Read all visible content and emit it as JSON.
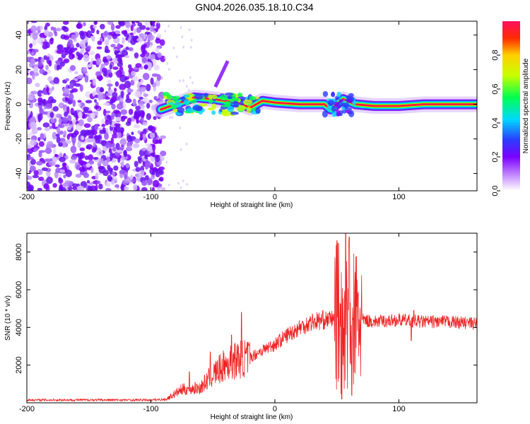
{
  "title": "GN04.2026.035.18.10.C34",
  "chart_data": [
    {
      "type": "heatmap",
      "xlabel": "Height of straight line (km)",
      "ylabel": "Frequency (Hz)",
      "xlim": [
        -200,
        163
      ],
      "ylim": [
        -50,
        48
      ],
      "xticks": [
        -200,
        -100,
        0,
        100
      ],
      "yticks": [
        -40,
        -20,
        0,
        20,
        40
      ],
      "colorbar": {
        "label": "Normalized spectral amplitude",
        "range": [
          0,
          1
        ],
        "ticks": [
          "0.0",
          "0.2",
          "0.4",
          "0.6",
          "0.8"
        ],
        "colormap": [
          "#ffffff",
          "#cc99ff",
          "#7a00ff",
          "#2a3cff",
          "#00d8ff",
          "#00ff50",
          "#c8ff00",
          "#ffd000",
          "#ff2a00",
          "#ff1060"
        ]
      },
      "regions": [
        {
          "name": "noise",
          "x": [
            -200,
            -90
          ],
          "freq": [
            -50,
            48
          ],
          "amplitude": 0.15
        },
        {
          "name": "signal",
          "x": [
            -90,
            163
          ],
          "freq_center": 0,
          "amplitude": 0.95
        }
      ],
      "ridge": [
        {
          "x": -92,
          "freq": -3
        },
        {
          "x": -80,
          "freq": 0
        },
        {
          "x": -65,
          "freq": 4
        },
        {
          "x": -50,
          "freq": 3
        },
        {
          "x": -40,
          "freq": 2
        },
        {
          "x": -30,
          "freq": 1
        },
        {
          "x": -20,
          "freq": -2
        },
        {
          "x": -10,
          "freq": 2
        },
        {
          "x": 0,
          "freq": 1
        },
        {
          "x": 20,
          "freq": 0
        },
        {
          "x": 40,
          "freq": 0
        },
        {
          "x": 45,
          "freq": -3
        },
        {
          "x": 55,
          "freq": 3
        },
        {
          "x": 65,
          "freq": 0
        },
        {
          "x": 80,
          "freq": -1
        },
        {
          "x": 100,
          "freq": -1
        },
        {
          "x": 120,
          "freq": 0
        },
        {
          "x": 163,
          "freq": 0
        }
      ]
    },
    {
      "type": "line",
      "xlabel": "Height of straight line (km)",
      "ylabel": "SNR (10 * v/v)",
      "xlim": [
        -200,
        163
      ],
      "ylim": [
        0,
        9000
      ],
      "xticks": [
        -200,
        -100,
        0,
        100
      ],
      "yticks": [
        2000,
        4000,
        6000,
        8000
      ],
      "color": "#ee2222",
      "series": [
        {
          "envelope": [
            {
              "x": -200,
              "y": 150
            },
            {
              "x": -150,
              "y": 150
            },
            {
              "x": -100,
              "y": 150
            },
            {
              "x": -88,
              "y": 180
            },
            {
              "x": -75,
              "y": 700
            },
            {
              "x": -60,
              "y": 800
            },
            {
              "x": -50,
              "y": 1500
            },
            {
              "x": -40,
              "y": 2000
            },
            {
              "x": -30,
              "y": 2300
            },
            {
              "x": -20,
              "y": 2400
            },
            {
              "x": -10,
              "y": 2800
            },
            {
              "x": 0,
              "y": 3100
            },
            {
              "x": 10,
              "y": 3600
            },
            {
              "x": 20,
              "y": 4000
            },
            {
              "x": 30,
              "y": 4300
            },
            {
              "x": 40,
              "y": 4400
            },
            {
              "x": 50,
              "y": 4500
            },
            {
              "x": 70,
              "y": 4400
            },
            {
              "x": 80,
              "y": 4300
            },
            {
              "x": 100,
              "y": 4400
            },
            {
              "x": 120,
              "y": 4300
            },
            {
              "x": 140,
              "y": 4300
            },
            {
              "x": 163,
              "y": 4200
            }
          ],
          "spikes": [
            {
              "x": -69,
              "y": 1650
            },
            {
              "x": -52,
              "y": 2700
            },
            {
              "x": -35,
              "y": 3600
            },
            {
              "x": -27,
              "y": 4800
            },
            {
              "x": 50,
              "y": 8600
            },
            {
              "x": 57,
              "y": 9000
            },
            {
              "x": 60,
              "y": 8800
            },
            {
              "x": 54,
              "y": 200
            },
            {
              "x": 62,
              "y": 400
            },
            {
              "x": 112,
              "y": 4900
            },
            {
              "x": 110,
              "y": 3300
            }
          ]
        }
      ]
    }
  ]
}
